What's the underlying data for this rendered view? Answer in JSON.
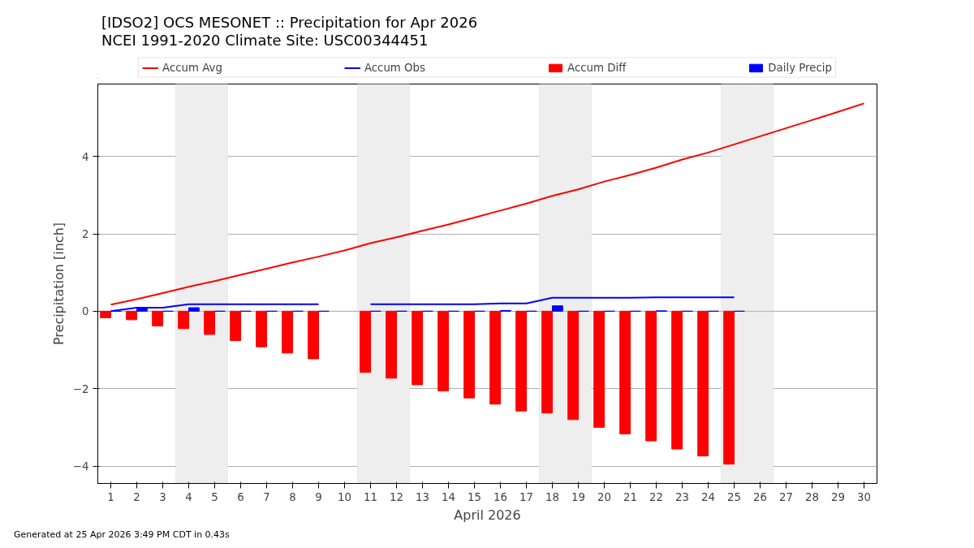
{
  "chart_data": {
    "type": "bar",
    "title": "[IDSO2] OCS MESONET :: Precipitation for Apr 2026",
    "subtitle": "NCEI 1991-2020 Climate Site: USC00344451",
    "xlabel": "April 2026",
    "ylabel": "Precipitation [inch]",
    "x": [
      1,
      2,
      3,
      4,
      5,
      6,
      7,
      8,
      9,
      10,
      11,
      12,
      13,
      14,
      15,
      16,
      17,
      18,
      19,
      20,
      21,
      22,
      23,
      24,
      25,
      26,
      27,
      28,
      29,
      30
    ],
    "series": [
      {
        "name": "Accum Avg",
        "type": "line",
        "color": "#ff0000",
        "values": [
          0.17,
          0.31,
          0.47,
          0.63,
          0.78,
          0.94,
          1.1,
          1.26,
          1.41,
          1.57,
          1.76,
          1.91,
          2.08,
          2.24,
          2.42,
          2.6,
          2.78,
          2.98,
          3.15,
          3.35,
          3.52,
          3.71,
          3.92,
          4.1,
          4.31,
          4.52,
          4.73,
          4.94,
          5.15,
          5.37
        ]
      },
      {
        "name": "Accum Obs",
        "type": "line",
        "color": "#0000ff",
        "values": [
          0,
          0.09,
          0.09,
          0.18,
          0.18,
          0.18,
          0.18,
          0.18,
          0.18,
          null,
          0.18,
          0.18,
          0.18,
          0.18,
          0.18,
          0.2,
          0.2,
          0.35,
          0.35,
          0.35,
          0.35,
          0.36,
          0.36,
          0.36,
          0.36,
          null,
          null,
          null,
          null,
          null
        ]
      },
      {
        "name": "Accum Diff",
        "color": "#ff0000",
        "values": [
          -0.17,
          -0.22,
          -0.38,
          -0.45,
          -0.6,
          -0.76,
          -0.92,
          -1.08,
          -1.23,
          null,
          -1.58,
          -1.73,
          -1.9,
          -2.06,
          -2.24,
          -2.4,
          -2.58,
          -2.63,
          -2.8,
          -3.0,
          -3.17,
          -3.35,
          -3.56,
          -3.74,
          -3.95,
          null,
          null,
          null,
          null,
          null
        ]
      },
      {
        "name": "Daily Precip",
        "color": "#0000ff",
        "values": [
          0,
          0.09,
          0,
          0.09,
          0,
          0,
          0,
          0,
          0,
          null,
          0,
          0,
          0,
          0,
          0,
          0.02,
          0,
          0.14,
          0,
          0,
          0,
          0.01,
          0,
          0,
          0,
          null,
          null,
          null,
          null,
          null
        ]
      }
    ],
    "bands": [
      {
        "axis": "x",
        "from": 3.5,
        "to": 5.5,
        "color": "#eeeeee"
      },
      {
        "axis": "x",
        "from": 10.5,
        "to": 12.5,
        "color": "#eeeeee"
      },
      {
        "axis": "x",
        "from": 17.5,
        "to": 19.5,
        "color": "#eeeeee"
      },
      {
        "axis": "x",
        "from": 24.5,
        "to": 26.5,
        "color": "#eeeeee"
      }
    ],
    "xlim": [
      0.5,
      30.5
    ],
    "xticks": [
      1,
      2,
      3,
      4,
      5,
      6,
      7,
      8,
      9,
      10,
      11,
      12,
      13,
      14,
      15,
      16,
      17,
      18,
      19,
      20,
      21,
      22,
      23,
      24,
      25,
      26,
      27,
      28,
      29,
      30
    ],
    "ylim": [
      -4.45,
      5.87
    ],
    "yticks": [
      -4,
      -2,
      0,
      2,
      4
    ],
    "grid": "y",
    "legend": "top",
    "annotations": [
      "Generated at 25 Apr 2026 3:49 PM CDT in 0.43s"
    ]
  }
}
